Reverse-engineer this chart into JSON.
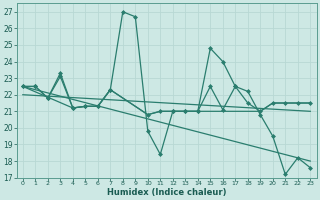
{
  "xlabel": "Humidex (Indice chaleur)",
  "xlim": [
    -0.5,
    23.5
  ],
  "ylim": [
    17,
    27.5
  ],
  "yticks": [
    17,
    18,
    19,
    20,
    21,
    22,
    23,
    24,
    25,
    26,
    27
  ],
  "xticks": [
    0,
    1,
    2,
    3,
    4,
    5,
    6,
    7,
    8,
    9,
    10,
    11,
    12,
    13,
    14,
    15,
    16,
    17,
    18,
    19,
    20,
    21,
    22,
    23
  ],
  "bg_color": "#cde8e4",
  "plot_bg_color": "#cde8e4",
  "line_color": "#2a7d6e",
  "grid_color_major": "#b8d8d4",
  "grid_color_minor": "#d4ecea",
  "lines": [
    {
      "x": [
        0,
        1,
        2,
        3,
        4,
        5,
        6,
        7,
        8,
        9,
        10,
        11,
        12,
        13,
        14,
        15,
        16,
        17,
        18,
        19,
        20,
        21,
        22,
        23
      ],
      "y": [
        22.5,
        22.5,
        21.8,
        23.3,
        21.2,
        21.3,
        21.3,
        22.3,
        27.0,
        26.7,
        19.8,
        18.4,
        21.0,
        21.0,
        21.0,
        24.8,
        24.0,
        22.5,
        22.2,
        20.8,
        19.5,
        17.2,
        18.2,
        17.6
      ],
      "marker": "D",
      "ms": 2.0,
      "lw": 0.9
    },
    {
      "x": [
        0,
        1,
        2,
        3,
        4,
        5,
        6,
        7,
        10,
        11,
        12,
        13,
        14,
        15,
        16,
        17,
        18,
        19,
        20,
        21,
        22,
        23
      ],
      "y": [
        22.5,
        22.5,
        21.8,
        23.1,
        21.2,
        21.3,
        21.3,
        22.3,
        20.8,
        21.0,
        21.0,
        21.0,
        21.0,
        22.5,
        21.1,
        22.5,
        21.5,
        21.0,
        21.5,
        21.5,
        21.5,
        21.5
      ],
      "marker": "D",
      "ms": 2.0,
      "lw": 0.9
    },
    {
      "x": [
        0,
        4,
        5,
        6,
        7,
        10,
        11,
        12,
        13,
        14,
        19,
        20,
        21,
        22,
        23
      ],
      "y": [
        22.5,
        21.2,
        21.3,
        21.3,
        22.3,
        20.8,
        21.0,
        21.0,
        21.0,
        21.0,
        21.0,
        21.5,
        21.5,
        21.5,
        21.5
      ],
      "marker": null,
      "ms": 0,
      "lw": 0.9
    },
    {
      "x": [
        0,
        23
      ],
      "y": [
        22.5,
        18.0
      ],
      "marker": null,
      "ms": 0,
      "lw": 0.9
    },
    {
      "x": [
        0,
        23
      ],
      "y": [
        22.0,
        21.0
      ],
      "marker": null,
      "ms": 0,
      "lw": 0.9
    }
  ]
}
